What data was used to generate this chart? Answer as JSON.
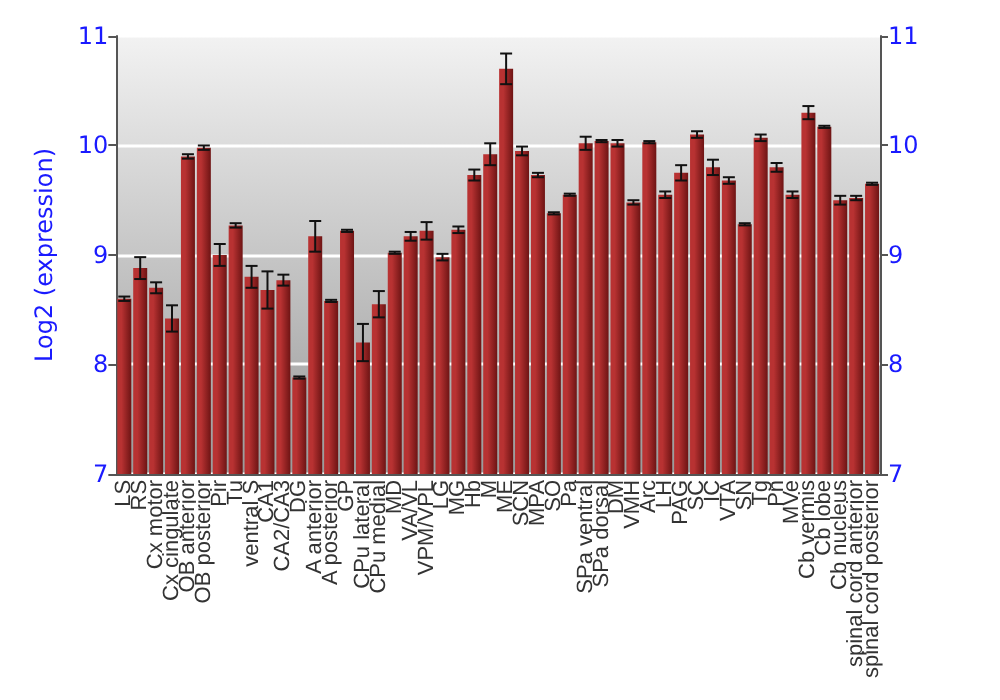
{
  "chart_data": {
    "type": "bar",
    "ylabel": "Log2 (expression)",
    "categories": [
      "LS",
      "RS",
      "Cx motor",
      "Cx cingulate",
      "OB anterior",
      "OB posterior",
      "Pir",
      "Tu",
      "ventral S",
      "CA1",
      "CA2/CA3",
      "DG",
      "A anterior",
      "A posterior",
      "GP",
      "CPu lateral",
      "CPu medial",
      "MD",
      "VA/VL",
      "VPM/VPL",
      "LG",
      "MG",
      "Hb",
      "M",
      "ME",
      "SCN",
      "MPA",
      "SO",
      "Pa",
      "SPa ventral",
      "SPa dorsal",
      "DM",
      "VMH",
      "Arc",
      "LH",
      "PAG",
      "SC",
      "IC",
      "VTA",
      "SN",
      "Tg",
      "Pn",
      "MVe",
      "Cb vermis",
      "Cb lobe",
      "Cb nucleus",
      "spinal cord anterior",
      "spinal cord posterior"
    ],
    "values": [
      8.6,
      8.88,
      8.7,
      8.42,
      9.9,
      9.98,
      9.0,
      9.27,
      8.8,
      8.68,
      8.77,
      7.88,
      9.17,
      8.58,
      9.22,
      8.2,
      8.55,
      9.02,
      9.17,
      9.22,
      8.98,
      9.23,
      9.73,
      9.92,
      10.7,
      9.95,
      9.73,
      9.38,
      9.55,
      10.02,
      10.04,
      10.02,
      9.48,
      10.03,
      9.55,
      9.75,
      10.1,
      9.8,
      9.68,
      9.28,
      10.07,
      9.8,
      9.55,
      10.3,
      10.17,
      9.5,
      9.52,
      9.65
    ],
    "errors": [
      0.02,
      0.1,
      0.05,
      0.12,
      0.02,
      0.02,
      0.1,
      0.02,
      0.1,
      0.17,
      0.05,
      0.01,
      0.14,
      0.01,
      0.01,
      0.17,
      0.12,
      0.01,
      0.04,
      0.08,
      0.03,
      0.03,
      0.05,
      0.1,
      0.14,
      0.04,
      0.02,
      0.01,
      0.01,
      0.06,
      0.01,
      0.03,
      0.02,
      0.01,
      0.03,
      0.07,
      0.03,
      0.07,
      0.03,
      0.01,
      0.03,
      0.04,
      0.03,
      0.06,
      0.01,
      0.04,
      0.02,
      0.01
    ],
    "color": "#b83232",
    "ylim": [
      7,
      11
    ],
    "yticks": [
      7,
      8,
      9,
      10,
      11
    ],
    "y2lim": [
      7,
      11
    ],
    "y2ticks": [
      7,
      8,
      9,
      10,
      11
    ],
    "grid": "y"
  }
}
